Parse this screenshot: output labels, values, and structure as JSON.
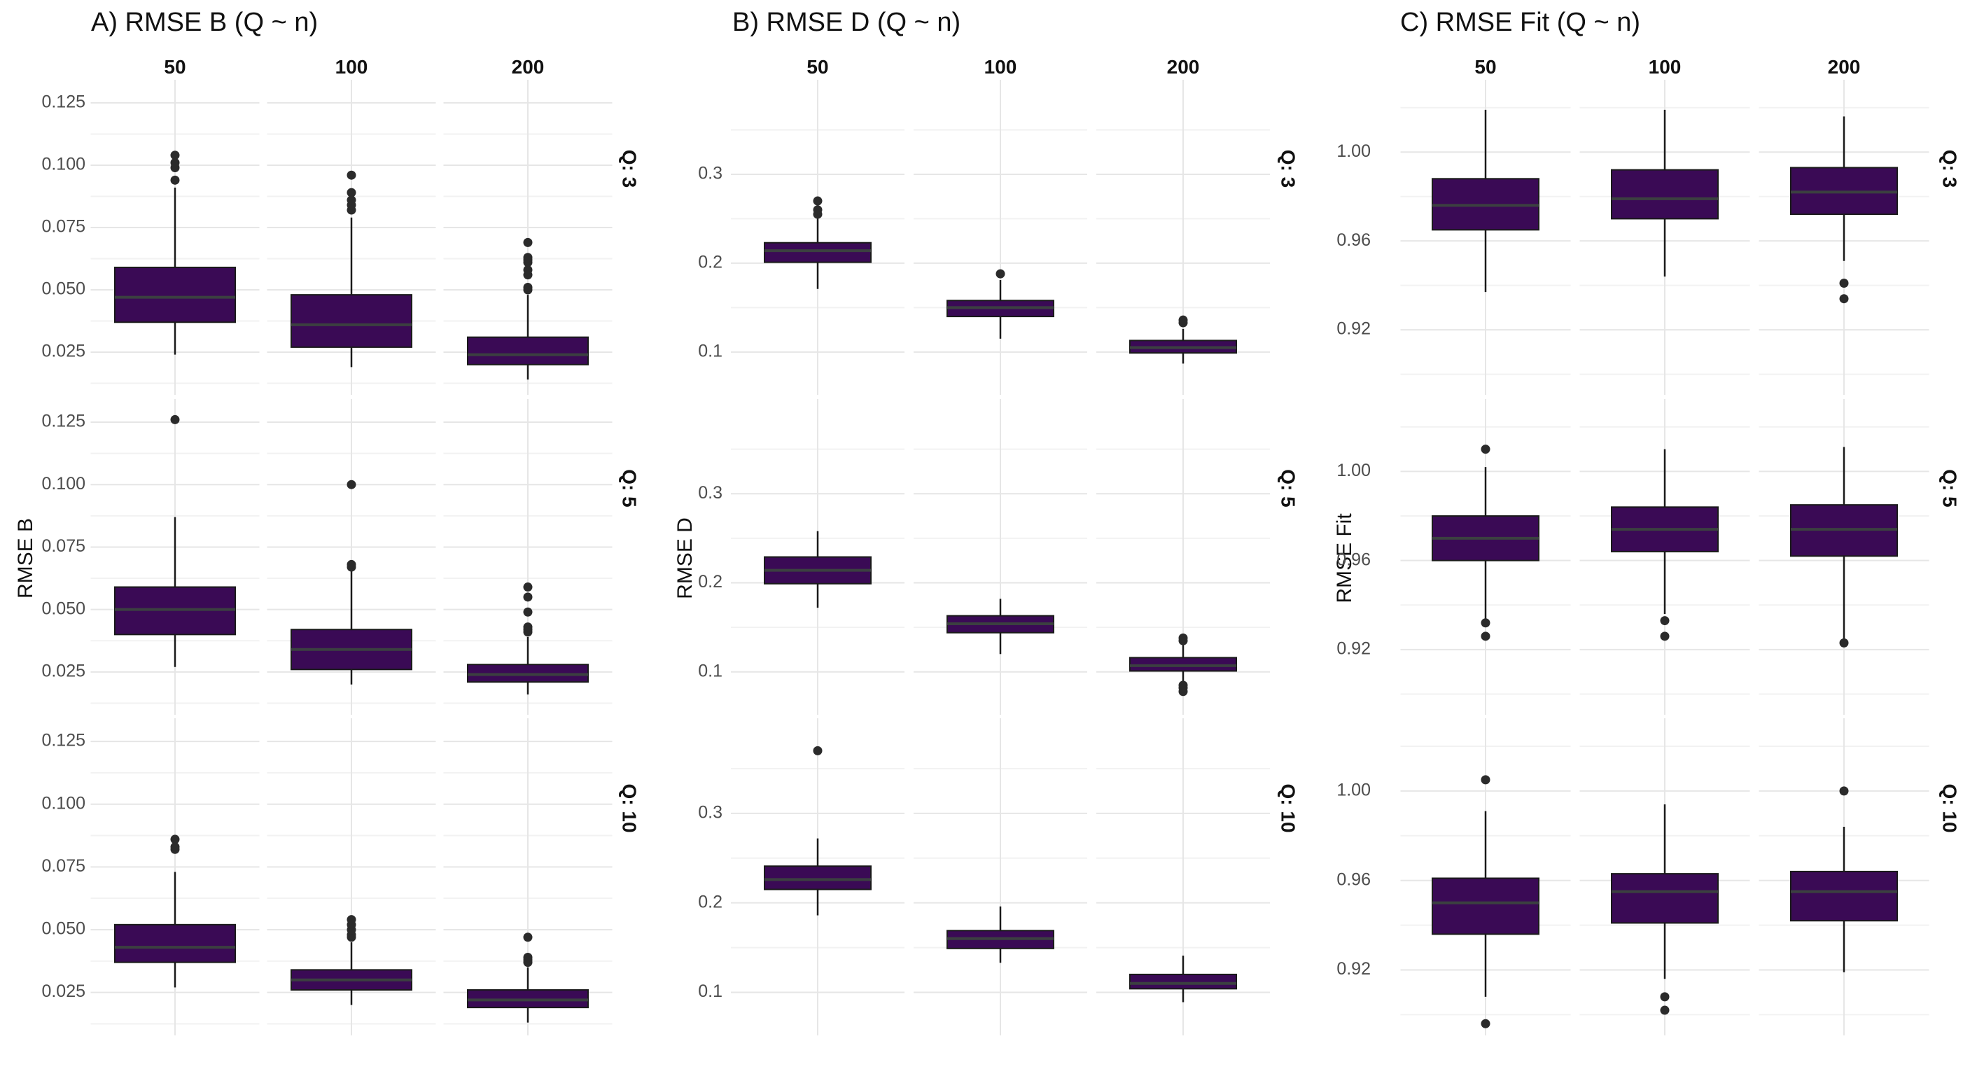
{
  "colors": {
    "box_fill": "#3a0a55",
    "box_stroke": "#1a1a1a",
    "median": "#3b4040",
    "whisker": "#1a1a1a",
    "outlier": "#2b2b2b",
    "grid_major": "#e6e6e6",
    "grid_minor": "#f2f2f2"
  },
  "chart_data": [
    {
      "type": "boxplot",
      "title": "A) RMSE B (Q ~ n)",
      "ylabel": "RMSE B",
      "xlabel": "",
      "columns": [
        "50",
        "100",
        "200"
      ],
      "rows": [
        "Q: 3",
        "Q: 5",
        "Q: 10"
      ],
      "ylim": [
        0.009,
        0.132
      ],
      "yticks": [
        0.025,
        0.05,
        0.075,
        0.1,
        0.125
      ],
      "ytick_labels": [
        "0.025",
        "0.050",
        "0.075",
        "0.100",
        "0.125"
      ],
      "boxes": [
        [
          {
            "whislo": 0.024,
            "q1": 0.037,
            "med": 0.047,
            "q3": 0.059,
            "whishi": 0.091,
            "fliers": [
              0.094,
              0.099,
              0.101,
              0.104
            ]
          },
          {
            "whislo": 0.019,
            "q1": 0.027,
            "med": 0.036,
            "q3": 0.048,
            "whishi": 0.079,
            "fliers": [
              0.082,
              0.084,
              0.086,
              0.089,
              0.096
            ]
          },
          {
            "whislo": 0.014,
            "q1": 0.02,
            "med": 0.024,
            "q3": 0.031,
            "whishi": 0.048,
            "fliers": [
              0.05,
              0.051,
              0.056,
              0.058,
              0.061,
              0.062,
              0.063,
              0.069
            ]
          }
        ],
        [
          {
            "whislo": 0.027,
            "q1": 0.04,
            "med": 0.05,
            "q3": 0.059,
            "whishi": 0.087,
            "fliers": [
              0.126
            ]
          },
          {
            "whislo": 0.02,
            "q1": 0.026,
            "med": 0.034,
            "q3": 0.042,
            "whishi": 0.066,
            "fliers": [
              0.067,
              0.068,
              0.1
            ]
          },
          {
            "whislo": 0.016,
            "q1": 0.021,
            "med": 0.024,
            "q3": 0.028,
            "whishi": 0.039,
            "fliers": [
              0.041,
              0.042,
              0.043,
              0.049,
              0.055,
              0.059
            ]
          }
        ],
        [
          {
            "whislo": 0.027,
            "q1": 0.037,
            "med": 0.043,
            "q3": 0.052,
            "whishi": 0.073,
            "fliers": [
              0.082,
              0.083,
              0.086
            ]
          },
          {
            "whislo": 0.02,
            "q1": 0.026,
            "med": 0.03,
            "q3": 0.034,
            "whishi": 0.045,
            "fliers": [
              0.047,
              0.048,
              0.05,
              0.052,
              0.054
            ]
          },
          {
            "whislo": 0.013,
            "q1": 0.019,
            "med": 0.022,
            "q3": 0.026,
            "whishi": 0.035,
            "fliers": [
              0.037,
              0.038,
              0.039,
              0.047
            ]
          }
        ]
      ]
    },
    {
      "type": "boxplot",
      "title": "B) RMSE D (Q ~ n)",
      "ylabel": "RMSE D",
      "xlabel": "",
      "columns": [
        "50",
        "100",
        "200"
      ],
      "rows": [
        "Q: 3",
        "Q: 5",
        "Q: 10"
      ],
      "ylim": [
        0.055,
        0.4
      ],
      "yticks": [
        0.1,
        0.2,
        0.3
      ],
      "ytick_labels": [
        "0.1",
        "0.2",
        "0.3"
      ],
      "boxes": [
        [
          {
            "whislo": 0.171,
            "q1": 0.201,
            "med": 0.214,
            "q3": 0.223,
            "whishi": 0.25,
            "fliers": [
              0.255,
              0.26,
              0.27
            ]
          },
          {
            "whislo": 0.115,
            "q1": 0.14,
            "med": 0.15,
            "q3": 0.158,
            "whishi": 0.181,
            "fliers": [
              0.188
            ]
          },
          {
            "whislo": 0.087,
            "q1": 0.099,
            "med": 0.105,
            "q3": 0.113,
            "whishi": 0.126,
            "fliers": [
              0.133,
              0.136
            ]
          }
        ],
        [
          {
            "whislo": 0.172,
            "q1": 0.199,
            "med": 0.214,
            "q3": 0.229,
            "whishi": 0.258,
            "fliers": []
          },
          {
            "whislo": 0.12,
            "q1": 0.144,
            "med": 0.154,
            "q3": 0.163,
            "whishi": 0.182,
            "fliers": []
          },
          {
            "whislo": 0.089,
            "q1": 0.101,
            "med": 0.107,
            "q3": 0.116,
            "whishi": 0.131,
            "fliers": [
              0.078,
              0.082,
              0.085,
              0.135,
              0.138
            ]
          }
        ],
        [
          {
            "whislo": 0.186,
            "q1": 0.215,
            "med": 0.226,
            "q3": 0.241,
            "whishi": 0.272,
            "fliers": [
              0.37
            ]
          },
          {
            "whislo": 0.133,
            "q1": 0.149,
            "med": 0.16,
            "q3": 0.169,
            "whishi": 0.196,
            "fliers": []
          },
          {
            "whislo": 0.089,
            "q1": 0.104,
            "med": 0.11,
            "q3": 0.12,
            "whishi": 0.141,
            "fliers": []
          }
        ]
      ]
    },
    {
      "type": "boxplot",
      "title": "C) RMSE Fit (Q ~ n)",
      "ylabel": "RMSE Fit",
      "xlabel": "",
      "columns": [
        "50",
        "100",
        "200"
      ],
      "rows": [
        "Q: 3",
        "Q: 5",
        "Q: 10"
      ],
      "ylim": [
        0.892,
        1.03
      ],
      "yticks": [
        0.92,
        0.96,
        1.0
      ],
      "ytick_labels": [
        "0.92",
        "0.96",
        "1.00"
      ],
      "boxes": [
        [
          {
            "whislo": 0.937,
            "q1": 0.965,
            "med": 0.976,
            "q3": 0.988,
            "whishi": 1.019,
            "fliers": []
          },
          {
            "whislo": 0.944,
            "q1": 0.97,
            "med": 0.979,
            "q3": 0.992,
            "whishi": 1.019,
            "fliers": []
          },
          {
            "whislo": 0.951,
            "q1": 0.972,
            "med": 0.982,
            "q3": 0.993,
            "whishi": 1.016,
            "fliers": [
              0.934,
              0.941
            ]
          }
        ],
        [
          {
            "whislo": 0.933,
            "q1": 0.96,
            "med": 0.97,
            "q3": 0.98,
            "whishi": 1.002,
            "fliers": [
              0.926,
              0.932,
              1.01
            ]
          },
          {
            "whislo": 0.936,
            "q1": 0.964,
            "med": 0.974,
            "q3": 0.984,
            "whishi": 1.01,
            "fliers": [
              0.926,
              0.933
            ]
          },
          {
            "whislo": 0.925,
            "q1": 0.962,
            "med": 0.974,
            "q3": 0.985,
            "whishi": 1.011,
            "fliers": [
              0.923
            ]
          }
        ],
        [
          {
            "whislo": 0.908,
            "q1": 0.936,
            "med": 0.95,
            "q3": 0.961,
            "whishi": 0.991,
            "fliers": [
              0.896,
              1.005
            ]
          },
          {
            "whislo": 0.916,
            "q1": 0.941,
            "med": 0.955,
            "q3": 0.963,
            "whishi": 0.994,
            "fliers": [
              0.902,
              0.908
            ]
          },
          {
            "whislo": 0.919,
            "q1": 0.942,
            "med": 0.955,
            "q3": 0.964,
            "whishi": 0.984,
            "fliers": [
              1.0
            ]
          }
        ]
      ]
    }
  ]
}
